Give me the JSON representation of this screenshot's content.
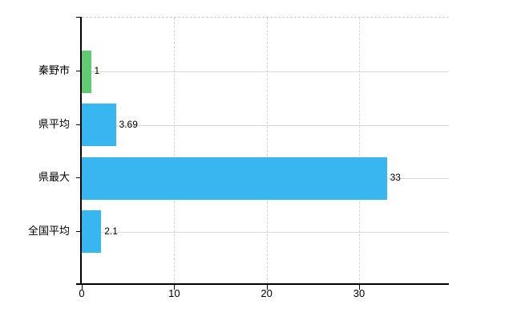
{
  "chart_data": {
    "type": "bar",
    "orientation": "horizontal",
    "title": "",
    "xlabel": "",
    "ylabel": "",
    "categories": [
      "秦野市",
      "県平均",
      "県最大",
      "全国平均"
    ],
    "values": [
      1,
      3.69,
      33,
      2.1
    ],
    "value_labels": [
      "1",
      "3.69",
      "33",
      "2.1"
    ],
    "x_ticks": [
      "0",
      "10",
      "20",
      "30"
    ],
    "xlim": [
      0,
      40
    ],
    "grid": true,
    "legend": "none",
    "colors": {
      "bar_default": "#38b6f0",
      "bar_highlight": "#63ca74",
      "highlight_index": 0,
      "axis": "#000000",
      "gridline": "#d8ddd8",
      "background": "#ffffff",
      "text": "#000000"
    }
  }
}
